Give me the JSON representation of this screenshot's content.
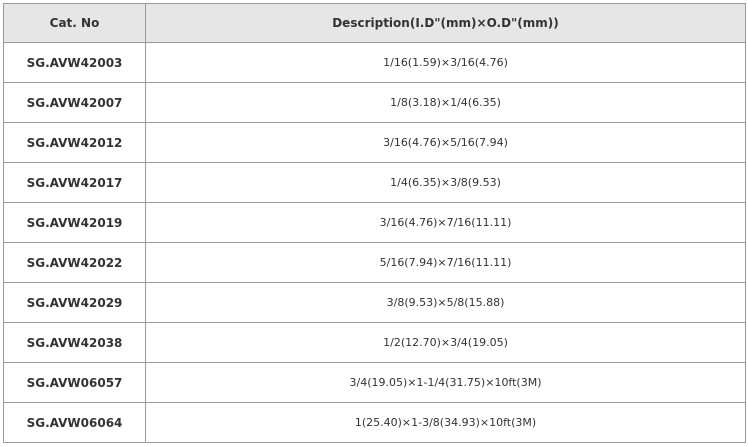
{
  "table": {
    "headers": [
      "Cat. No",
      "Description(I.D\"(mm)×O.D\"(mm))"
    ],
    "rows": [
      {
        "cat": "SG.AVW42003",
        "desc": "1/16(1.59)×3/16(4.76)"
      },
      {
        "cat": "SG.AVW42007",
        "desc": "1/8(3.18)×1/4(6.35)"
      },
      {
        "cat": "SG.AVW42012",
        "desc": "3/16(4.76)×5/16(7.94)"
      },
      {
        "cat": "SG.AVW42017",
        "desc": "1/4(6.35)×3/8(9.53)"
      },
      {
        "cat": "SG.AVW42019",
        "desc": "3/16(4.76)×7/16(11.11)"
      },
      {
        "cat": "SG.AVW42022",
        "desc": "5/16(7.94)×7/16(11.11)"
      },
      {
        "cat": "SG.AVW42029",
        "desc": "3/8(9.53)×5/8(15.88)"
      },
      {
        "cat": "SG.AVW42038",
        "desc": "1/2(12.70)×3/4(19.05)"
      },
      {
        "cat": "SG.AVW06057",
        "desc": "3/4(19.05)×1-1/4(31.75)×10ft(3M)"
      },
      {
        "cat": "SG.AVW06064",
        "desc": "1(25.40)×1-3/8(34.93)×10ft(3M)"
      }
    ]
  }
}
